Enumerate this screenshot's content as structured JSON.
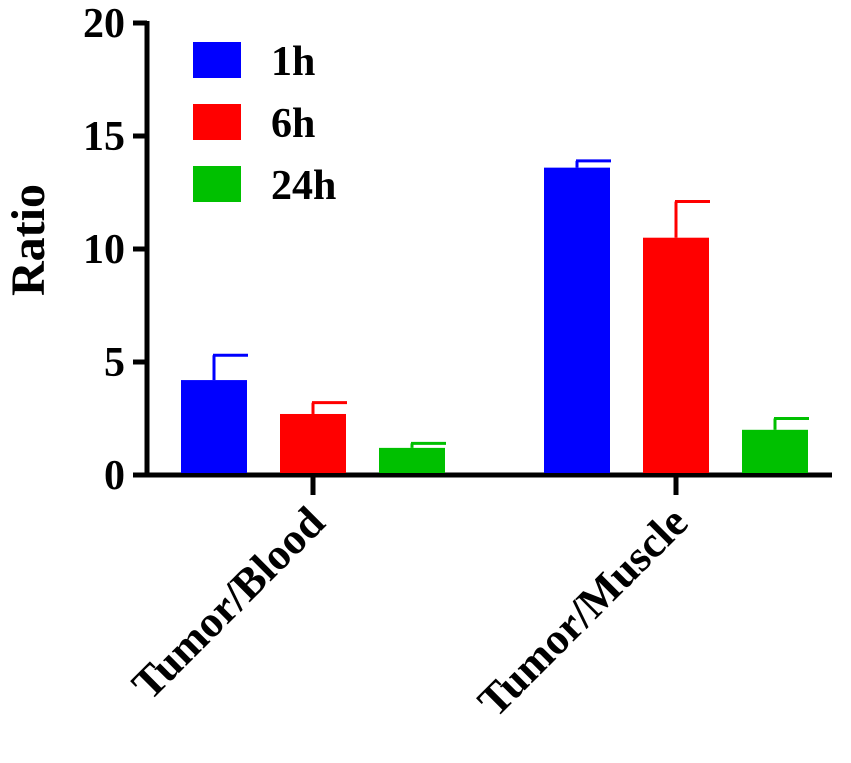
{
  "chart_data": {
    "type": "bar",
    "title": "",
    "xlabel": "",
    "ylabel": "Ratio",
    "ylim": [
      0,
      20
    ],
    "yticks": [
      "0",
      "5",
      "10",
      "15",
      "20"
    ],
    "categories": [
      "Tumor/Blood",
      "Tumor/Muscle"
    ],
    "grid": false,
    "legend_position": "top-left",
    "series": [
      {
        "name": "1h",
        "color": "#0000ff",
        "values": [
          4.2,
          13.6
        ],
        "errors": [
          1.1,
          0.3
        ]
      },
      {
        "name": "6h",
        "color": "#ff0000",
        "values": [
          2.7,
          10.5
        ],
        "errors": [
          0.5,
          1.6
        ]
      },
      {
        "name": "24h",
        "color": "#00c000",
        "values": [
          1.2,
          2.0
        ],
        "errors": [
          0.2,
          0.5
        ]
      }
    ]
  }
}
